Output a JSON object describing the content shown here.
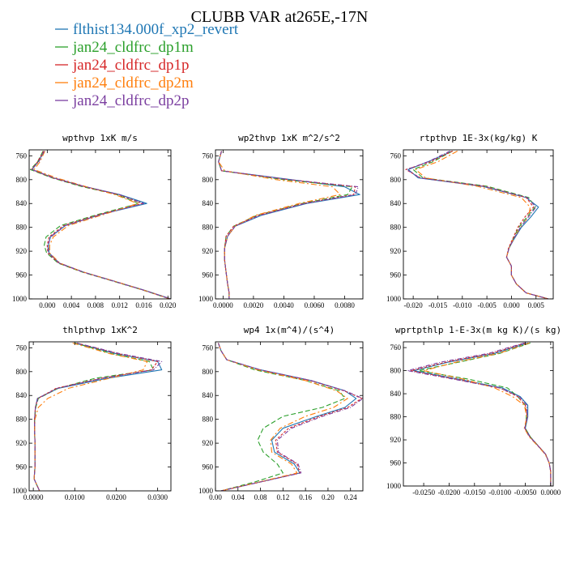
{
  "figure_title": "CLUBB VAR at265E,-17N",
  "legend": [
    {
      "label": "flthist134.000f_xp2_revert",
      "color": "#1f77b4"
    },
    {
      "label": "jan24_cldfrc_dp1m",
      "color": "#2ca02c"
    },
    {
      "label": "jan24_cldfrc_dp1p",
      "color": "#d62728"
    },
    {
      "label": "jan24_cldfrc_dp2m",
      "color": "#ff7f0e"
    },
    {
      "label": "jan24_cldfrc_dp2p",
      "color": "#7b3fa0"
    }
  ],
  "chart_data": [
    {
      "type": "line",
      "title": "wpthvp   1xK m/s",
      "ylim": [
        1000,
        750
      ],
      "xlim": [
        -0.003,
        0.0205
      ],
      "yticks": [
        760,
        800,
        840,
        880,
        920,
        960,
        1000
      ],
      "xticks": [
        "0.000",
        "0.004",
        "0.008",
        "0.012",
        "0.016",
        "0.020"
      ],
      "xtick_values": [
        0,
        0.004,
        0.008,
        0.012,
        0.016,
        0.02
      ],
      "levels": [
        752,
        770,
        783,
        797,
        811,
        825,
        840,
        858,
        877,
        896,
        910,
        923,
        940,
        955,
        970,
        985,
        1000
      ],
      "series": [
        {
          "values": [
            -0.0005,
            -0.0015,
            -0.0025,
            0.001,
            0.006,
            0.012,
            0.0165,
            0.009,
            0.003,
            0.0005,
            0.0002,
            0.0003,
            0.002,
            0.006,
            0.011,
            0.016,
            0.0205
          ]
        },
        {
          "values": [
            -0.0007,
            -0.0016,
            -0.0028,
            0.0008,
            0.0055,
            0.0115,
            0.0152,
            0.0085,
            0.0022,
            -0.0002,
            -0.0005,
            -0.0001,
            0.0018,
            0.0058,
            0.0108,
            0.0158,
            0.0203
          ]
        },
        {
          "values": [
            -0.0006,
            -0.0016,
            -0.0026,
            0.0009,
            0.0058,
            0.0118,
            0.0158,
            0.0088,
            0.0027,
            0.0003,
            0.0,
            0.0001,
            0.0019,
            0.0059,
            0.011,
            0.0159,
            0.0204
          ]
        },
        {
          "values": [
            -0.0004,
            -0.0012,
            -0.0022,
            0.0015,
            0.0062,
            0.0112,
            0.015,
            0.0095,
            0.0035,
            0.001,
            0.0004,
            0.0004,
            0.0021,
            0.006,
            0.011,
            0.0159,
            0.0203
          ]
        },
        {
          "values": [
            -0.0005,
            -0.0014,
            -0.0026,
            0.0011,
            0.006,
            0.0119,
            0.016,
            0.0091,
            0.003,
            0.0006,
            0.0001,
            0.0002,
            0.002,
            0.006,
            0.0109,
            0.0159,
            0.0204
          ]
        }
      ]
    },
    {
      "type": "line",
      "title": "wp2thvp   1xK m^2/s^2",
      "ylim": [
        1000,
        750
      ],
      "xlim": [
        -0.0005,
        0.0092
      ],
      "yticks": [
        760,
        800,
        840,
        880,
        920,
        960,
        1000
      ],
      "xticks": [
        "0.0000",
        "0.0020",
        "0.0040",
        "0.0060",
        "0.0080"
      ],
      "xtick_values": [
        0,
        0.002,
        0.004,
        0.006,
        0.008
      ],
      "levels": [
        752,
        770,
        785,
        800,
        812,
        825,
        840,
        860,
        878,
        895,
        915,
        935,
        955,
        975,
        990,
        1000
      ],
      "series": [
        {
          "values": [
            -0.0001,
            -0.0003,
            -0.0001,
            0.0045,
            0.008,
            0.009,
            0.0055,
            0.0025,
            0.0008,
            0.0003,
            0.0001,
            0.0001,
            0.0002,
            0.0003,
            0.0004,
            0.0004
          ]
        },
        {
          "values": [
            -0.0001,
            -0.0003,
            -0.0001,
            0.004,
            0.0085,
            0.0082,
            0.0052,
            0.0022,
            0.0007,
            0.0002,
            0.0001,
            0.0001,
            0.0002,
            0.0003,
            0.0004,
            0.0004
          ]
        },
        {
          "values": [
            -0.0001,
            -0.0003,
            -0.0001,
            0.0043,
            0.0087,
            0.0086,
            0.0053,
            0.0023,
            0.0007,
            0.0002,
            0.0001,
            0.0001,
            0.0002,
            0.0003,
            0.0004,
            0.0004
          ]
        },
        {
          "values": [
            -0.0001,
            -0.0003,
            0.0001,
            0.0035,
            0.0072,
            0.0077,
            0.005,
            0.0021,
            0.0008,
            0.0003,
            0.0001,
            0.0001,
            0.0002,
            0.0003,
            0.0004,
            0.0004
          ]
        },
        {
          "values": [
            -0.0001,
            -0.0003,
            -0.0001,
            0.0044,
            0.0089,
            0.0087,
            0.0054,
            0.0024,
            0.0008,
            0.0003,
            0.0001,
            0.0001,
            0.0002,
            0.0003,
            0.0004,
            0.0004
          ]
        }
      ]
    },
    {
      "type": "line",
      "title": "rtpthvp   1E-3x(kg/kg) K",
      "ylim": [
        1000,
        750
      ],
      "xlim": [
        -0.022,
        0.0085
      ],
      "yticks": [
        760,
        800,
        840,
        880,
        920,
        960,
        1000
      ],
      "xticks": [
        "-0.020",
        "-0.015",
        "-0.010",
        "-0.005",
        "0.000",
        "0.005"
      ],
      "xtick_values": [
        -0.02,
        -0.015,
        -0.01,
        -0.005,
        0,
        0.005
      ],
      "levels": [
        752,
        770,
        783,
        797,
        811,
        830,
        846,
        862,
        880,
        900,
        915,
        930,
        945,
        960,
        975,
        990,
        1000
      ],
      "series": [
        {
          "values": [
            -0.012,
            -0.017,
            -0.021,
            -0.019,
            -0.006,
            0.003,
            0.0055,
            0.004,
            0.002,
            0.0005,
            -0.0005,
            -0.001,
            0.0,
            0.0,
            0.001,
            0.003,
            0.0075
          ]
        },
        {
          "values": [
            -0.012,
            -0.016,
            -0.02,
            -0.018,
            -0.005,
            0.0035,
            0.0048,
            0.0032,
            0.0015,
            0.0003,
            -0.0005,
            -0.001,
            0.0,
            0.0,
            0.001,
            0.003,
            0.0075
          ]
        },
        {
          "values": [
            -0.012,
            -0.0165,
            -0.0215,
            -0.0185,
            -0.0055,
            0.003,
            0.0045,
            0.0028,
            0.0013,
            0.0002,
            -0.0006,
            -0.001,
            0.0,
            0.0,
            0.001,
            0.003,
            0.0075
          ]
        },
        {
          "values": [
            -0.011,
            -0.015,
            -0.0195,
            -0.0175,
            -0.007,
            0.002,
            0.0038,
            0.0035,
            0.0018,
            0.0004,
            -0.0005,
            -0.001,
            0.0,
            0.0,
            0.001,
            0.003,
            0.0075
          ]
        },
        {
          "values": [
            -0.0125,
            -0.017,
            -0.0213,
            -0.0187,
            -0.0058,
            0.0032,
            0.005,
            0.0035,
            0.0018,
            0.0004,
            -0.0005,
            -0.001,
            0.0,
            0.0,
            0.001,
            0.003,
            0.0075
          ]
        }
      ]
    },
    {
      "type": "line",
      "title": "thlpthvp   1xK^2",
      "ylim": [
        1000,
        750
      ],
      "xlim": [
        -0.001,
        0.0332
      ],
      "yticks": [
        760,
        800,
        840,
        880,
        920,
        960,
        1000
      ],
      "xticks": [
        "0.0000",
        "0.0100",
        "0.0200",
        "0.0300"
      ],
      "xtick_values": [
        0,
        0.01,
        0.02,
        0.03
      ],
      "levels": [
        752,
        770,
        783,
        797,
        811,
        828,
        845,
        860,
        880,
        900,
        920,
        940,
        960,
        980,
        1000
      ],
      "series": [
        {
          "values": [
            0.01,
            0.02,
            0.03,
            0.031,
            0.018,
            0.006,
            0.001,
            0.0005,
            0.0003,
            0.0003,
            0.0004,
            0.0004,
            0.0004,
            0.0002,
            0.0015
          ]
        },
        {
          "values": [
            0.01,
            0.019,
            0.028,
            0.029,
            0.015,
            0.006,
            0.0012,
            0.0006,
            0.0003,
            0.0003,
            0.0004,
            0.0004,
            0.0004,
            0.0002,
            0.0015
          ]
        },
        {
          "values": [
            0.0105,
            0.0205,
            0.03,
            0.0285,
            0.0165,
            0.0055,
            0.0011,
            0.0005,
            0.0003,
            0.0003,
            0.0004,
            0.0004,
            0.0004,
            0.0002,
            0.0015
          ]
        },
        {
          "values": [
            0.0095,
            0.0185,
            0.0275,
            0.0265,
            0.0185,
            0.0085,
            0.0035,
            0.0012,
            0.0004,
            0.0003,
            0.0004,
            0.0004,
            0.0004,
            0.0002,
            0.0015
          ]
        },
        {
          "values": [
            0.0105,
            0.021,
            0.031,
            0.029,
            0.0168,
            0.0058,
            0.0011,
            0.0005,
            0.0003,
            0.0003,
            0.0004,
            0.0004,
            0.0004,
            0.0002,
            0.0015
          ]
        }
      ]
    },
    {
      "type": "line",
      "title": "wp4   1x(m^4)/(s^4)",
      "ylim": [
        1000,
        750
      ],
      "xlim": [
        0.0,
        0.262
      ],
      "yticks": [
        760,
        800,
        840,
        880,
        920,
        960,
        1000
      ],
      "xticks": [
        "0.00",
        "0.04",
        "0.08",
        "0.12",
        "0.16",
        "0.20",
        "0.24"
      ],
      "xtick_values": [
        0,
        0.04,
        0.08,
        0.12,
        0.16,
        0.2,
        0.24
      ],
      "levels": [
        752,
        765,
        780,
        797,
        815,
        832,
        845,
        860,
        875,
        895,
        915,
        935,
        955,
        970,
        985,
        1000
      ],
      "series": [
        {
          "values": [
            0.005,
            0.01,
            0.02,
            0.08,
            0.17,
            0.23,
            0.25,
            0.23,
            0.18,
            0.12,
            0.1,
            0.105,
            0.14,
            0.15,
            0.08,
            0.01
          ]
        },
        {
          "values": [
            0.005,
            0.01,
            0.02,
            0.07,
            0.16,
            0.22,
            0.23,
            0.19,
            0.12,
            0.085,
            0.075,
            0.085,
            0.11,
            0.12,
            0.07,
            0.01
          ]
        },
        {
          "values": [
            0.005,
            0.01,
            0.02,
            0.078,
            0.168,
            0.228,
            0.26,
            0.235,
            0.185,
            0.13,
            0.107,
            0.11,
            0.145,
            0.15,
            0.08,
            0.01
          ]
        },
        {
          "values": [
            0.005,
            0.01,
            0.02,
            0.075,
            0.16,
            0.215,
            0.235,
            0.21,
            0.16,
            0.115,
            0.098,
            0.1,
            0.135,
            0.145,
            0.078,
            0.01
          ]
        },
        {
          "values": [
            0.005,
            0.01,
            0.02,
            0.08,
            0.17,
            0.23,
            0.262,
            0.24,
            0.19,
            0.135,
            0.11,
            0.112,
            0.147,
            0.152,
            0.08,
            0.01
          ]
        }
      ]
    },
    {
      "type": "line",
      "title": "wprtpthlp   1-E-3x(m kg K)/(s kg)",
      "ylim": [
        1000,
        750
      ],
      "xlim": [
        -0.029,
        0.0005
      ],
      "yticks": [
        760,
        800,
        840,
        880,
        920,
        960,
        1000
      ],
      "xticks": [
        "-0.0250",
        "-0.0200",
        "-0.0150",
        "-0.0100",
        "-0.0050",
        "0.0000"
      ],
      "xtick_values": [
        -0.025,
        -0.02,
        -0.015,
        -0.01,
        -0.005,
        0
      ],
      "levels": [
        752,
        770,
        785,
        800,
        815,
        830,
        845,
        860,
        880,
        900,
        915,
        930,
        945,
        960,
        975,
        990,
        1000
      ],
      "series": [
        {
          "values": [
            -0.0045,
            -0.011,
            -0.02,
            -0.027,
            -0.018,
            -0.0095,
            -0.006,
            -0.0045,
            -0.0045,
            -0.005,
            -0.004,
            -0.0025,
            -0.001,
            -0.0003,
            0.0,
            0.0,
            0.0
          ]
        },
        {
          "values": [
            -0.004,
            -0.01,
            -0.018,
            -0.026,
            -0.016,
            -0.0085,
            -0.0065,
            -0.005,
            -0.0048,
            -0.005,
            -0.004,
            -0.0025,
            -0.001,
            -0.0003,
            0.0,
            0.0,
            0.0
          ]
        },
        {
          "values": [
            -0.005,
            -0.0115,
            -0.0205,
            -0.0275,
            -0.0185,
            -0.01,
            -0.0065,
            -0.005,
            -0.0046,
            -0.0051,
            -0.0041,
            -0.0025,
            -0.001,
            -0.0003,
            0.0,
            0.0,
            0.0
          ]
        },
        {
          "values": [
            -0.0042,
            -0.0102,
            -0.0185,
            -0.025,
            -0.017,
            -0.011,
            -0.0075,
            -0.0052,
            -0.0047,
            -0.0052,
            -0.0042,
            -0.0026,
            -0.0011,
            -0.0003,
            0.0,
            0.0,
            0.0
          ]
        },
        {
          "values": [
            -0.0052,
            -0.0122,
            -0.0215,
            -0.0282,
            -0.019,
            -0.01,
            -0.0062,
            -0.0047,
            -0.0046,
            -0.0051,
            -0.0041,
            -0.0025,
            -0.001,
            -0.0003,
            0.0,
            0.0,
            0.0
          ]
        }
      ]
    }
  ]
}
